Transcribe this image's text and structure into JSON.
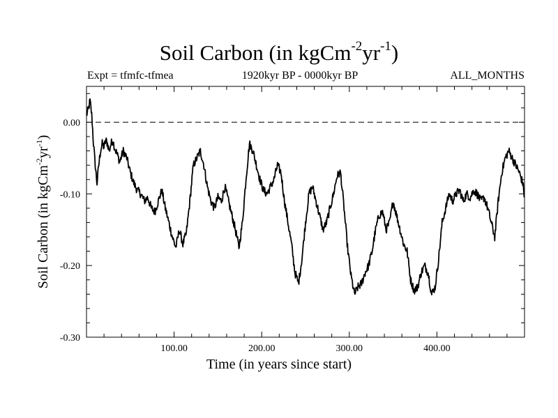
{
  "chart_data": {
    "type": "line",
    "title_main": "Soil Carbon (in kgCm",
    "title_sup1": "-2",
    "title_mid": "yr",
    "title_sup2": "-1",
    "title_end": ")",
    "subtitle_left": "Expt = tfmfc-tfmea",
    "subtitle_center": "1920kyr BP - 0000kyr BP",
    "subtitle_right": "ALL_MONTHS",
    "ylabel_main": "Soil Carbon (in kgCm",
    "ylabel_sup1": "-2",
    "ylabel_mid": "yr",
    "ylabel_sup2": "-1",
    "ylabel_end": ")",
    "xlabel": "Time (in years since start)",
    "xlim": [
      0,
      500
    ],
    "ylim": [
      -0.3,
      0.05
    ],
    "x_ticks": [
      {
        "value": 100,
        "label": "100.00"
      },
      {
        "value": 200,
        "label": "200.00"
      },
      {
        "value": 300,
        "label": "300.00"
      },
      {
        "value": 400,
        "label": "400.00"
      }
    ],
    "y_ticks": [
      {
        "value": 0.0,
        "label": "0.00"
      },
      {
        "value": -0.1,
        "label": "-0.10"
      },
      {
        "value": -0.2,
        "label": "-0.20"
      },
      {
        "value": -0.3,
        "label": "-0.30"
      }
    ],
    "reference_line": {
      "y": 0.0,
      "style": "dashed"
    },
    "series": [
      {
        "name": "Soil Carbon",
        "x": [
          0,
          2,
          4,
          6,
          8,
          10,
          12,
          14,
          16,
          18,
          20,
          22,
          24,
          26,
          28,
          30,
          32,
          35,
          38,
          42,
          46,
          50,
          54,
          58,
          62,
          66,
          70,
          74,
          78,
          82,
          86,
          90,
          94,
          98,
          102,
          106,
          110,
          114,
          118,
          122,
          126,
          130,
          134,
          138,
          142,
          146,
          150,
          154,
          158,
          162,
          166,
          170,
          174,
          178,
          182,
          186,
          190,
          194,
          198,
          202,
          206,
          210,
          214,
          218,
          222,
          226,
          230,
          234,
          238,
          242,
          246,
          250,
          254,
          258,
          262,
          266,
          270,
          274,
          278,
          282,
          286,
          290,
          294,
          298,
          302,
          306,
          310,
          314,
          318,
          322,
          326,
          330,
          334,
          338,
          342,
          346,
          350,
          354,
          358,
          362,
          366,
          370,
          374,
          378,
          382,
          386,
          390,
          394,
          398,
          402,
          406,
          410,
          414,
          418,
          422,
          426,
          430,
          434,
          438,
          442,
          446,
          450,
          454,
          458,
          462,
          466,
          470,
          474,
          478,
          482,
          486,
          490,
          494,
          498,
          500
        ],
        "values": [
          0.01,
          0.017,
          0.03,
          0.01,
          -0.03,
          -0.06,
          -0.085,
          -0.06,
          -0.04,
          -0.03,
          -0.035,
          -0.025,
          -0.03,
          -0.04,
          -0.03,
          -0.025,
          -0.035,
          -0.045,
          -0.055,
          -0.04,
          -0.05,
          -0.07,
          -0.085,
          -0.095,
          -0.1,
          -0.11,
          -0.105,
          -0.12,
          -0.125,
          -0.11,
          -0.095,
          -0.12,
          -0.14,
          -0.16,
          -0.175,
          -0.15,
          -0.17,
          -0.155,
          -0.11,
          -0.06,
          -0.05,
          -0.04,
          -0.06,
          -0.09,
          -0.11,
          -0.12,
          -0.105,
          -0.11,
          -0.09,
          -0.11,
          -0.13,
          -0.15,
          -0.175,
          -0.14,
          -0.08,
          -0.03,
          -0.04,
          -0.06,
          -0.08,
          -0.095,
          -0.1,
          -0.09,
          -0.08,
          -0.06,
          -0.07,
          -0.11,
          -0.14,
          -0.17,
          -0.21,
          -0.225,
          -0.19,
          -0.14,
          -0.1,
          -0.09,
          -0.11,
          -0.13,
          -0.15,
          -0.14,
          -0.12,
          -0.1,
          -0.075,
          -0.07,
          -0.12,
          -0.175,
          -0.215,
          -0.24,
          -0.23,
          -0.225,
          -0.21,
          -0.2,
          -0.18,
          -0.15,
          -0.13,
          -0.125,
          -0.15,
          -0.14,
          -0.11,
          -0.13,
          -0.15,
          -0.17,
          -0.18,
          -0.22,
          -0.235,
          -0.23,
          -0.21,
          -0.2,
          -0.21,
          -0.24,
          -0.23,
          -0.19,
          -0.14,
          -0.12,
          -0.1,
          -0.11,
          -0.1,
          -0.095,
          -0.11,
          -0.1,
          -0.105,
          -0.095,
          -0.1,
          -0.11,
          -0.105,
          -0.12,
          -0.14,
          -0.16,
          -0.11,
          -0.07,
          -0.05,
          -0.04,
          -0.05,
          -0.06,
          -0.07,
          -0.085,
          -0.105
        ]
      }
    ]
  }
}
